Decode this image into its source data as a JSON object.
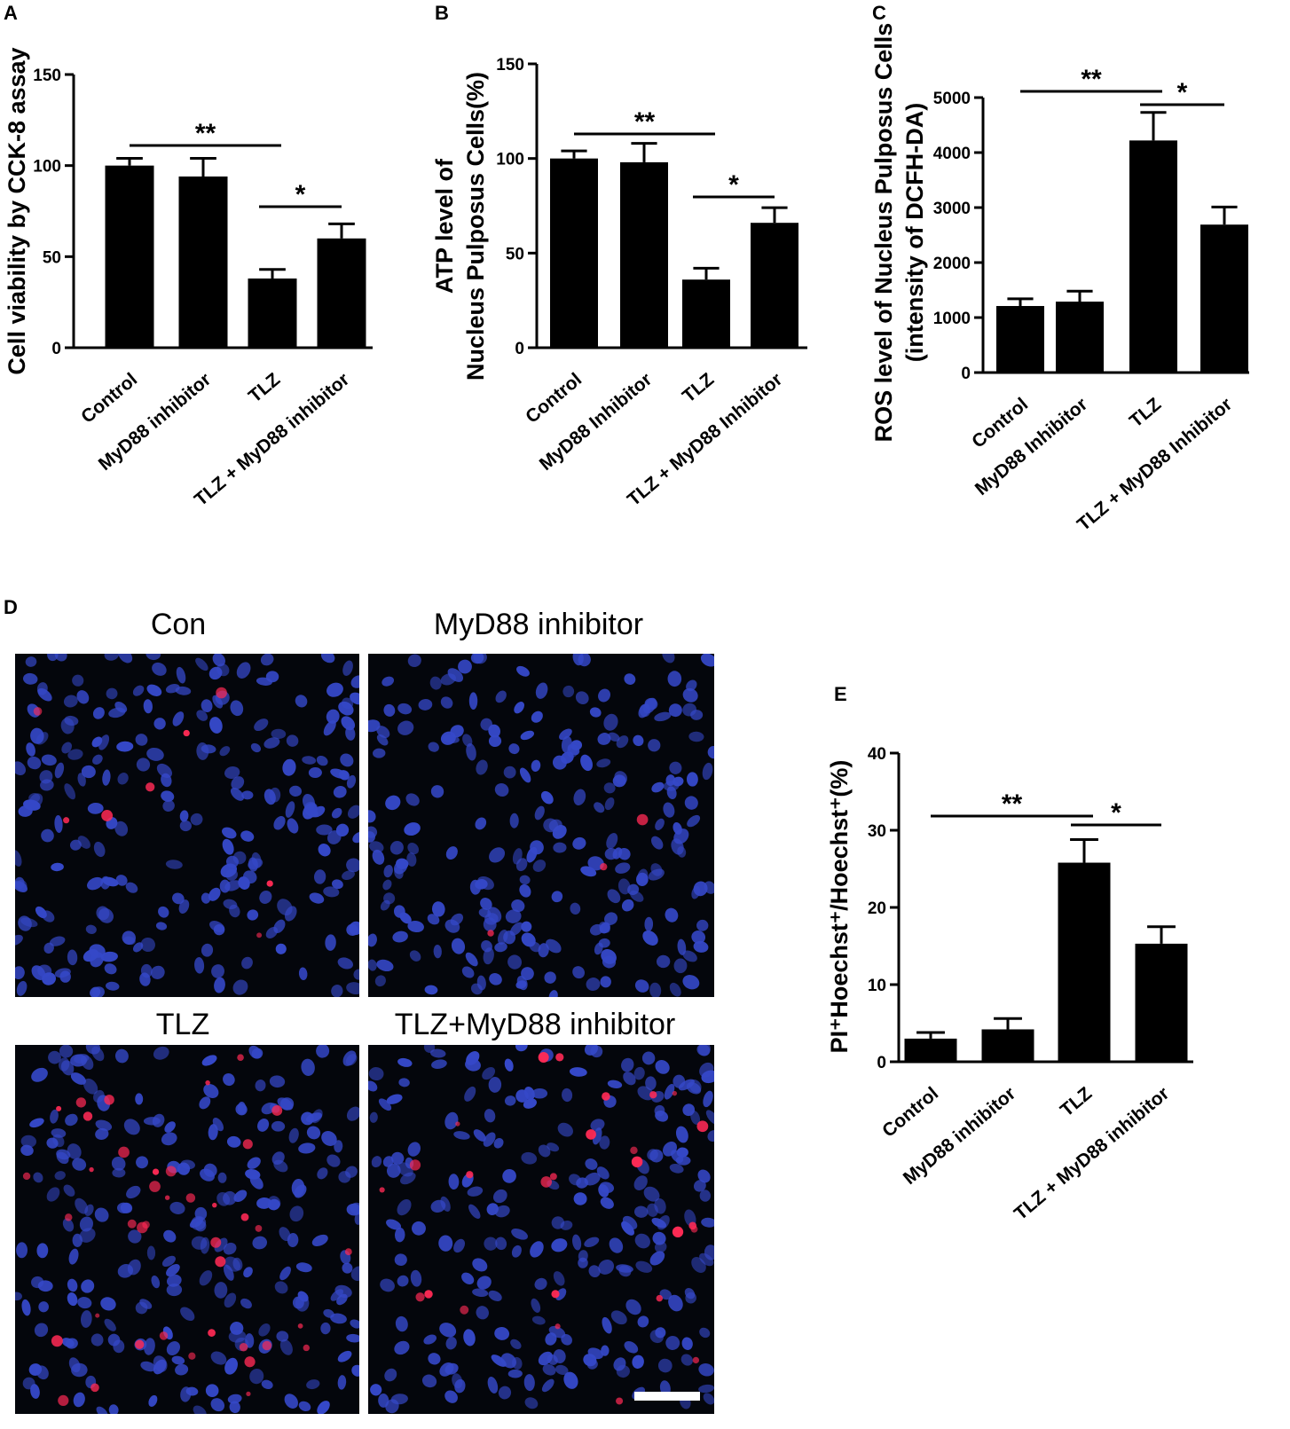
{
  "chart_data": [
    {
      "panel": "A",
      "type": "bar",
      "ylabel": "Cell viability by CCK-8 assay",
      "ylim": [
        0,
        150
      ],
      "yticks": [
        0,
        50,
        100,
        150
      ],
      "categories": [
        "Control",
        "MyD88 inhibitor",
        "TLZ",
        "TLZ + MyD88 inhibitor"
      ],
      "values": [
        100,
        94,
        38,
        60
      ],
      "errors": [
        4,
        10,
        5,
        8
      ],
      "significance": [
        {
          "label": "**",
          "from": 0,
          "to": 2
        },
        {
          "label": "*",
          "from": 2,
          "to": 3
        }
      ]
    },
    {
      "panel": "B",
      "type": "bar",
      "ylabel_lines": [
        "ATP level of",
        "Nucleus Pulposus Cells(%)"
      ],
      "ylim": [
        0,
        150
      ],
      "yticks": [
        0,
        50,
        100,
        150
      ],
      "categories": [
        "Control",
        "MyD88 Inhibitor",
        "TLZ",
        "TLZ + MyD88 Inhibitor"
      ],
      "values": [
        100,
        98,
        36,
        66
      ],
      "errors": [
        4,
        10,
        6,
        8
      ],
      "significance": [
        {
          "label": "**",
          "from": 0,
          "to": 2
        },
        {
          "label": "*",
          "from": 2,
          "to": 3
        }
      ]
    },
    {
      "panel": "C",
      "type": "bar",
      "ylabel_lines": [
        "ROS level of Nucleus Pulposus Cells",
        "(intensity of DCFH-DA)"
      ],
      "ylim": [
        0,
        5000
      ],
      "yticks": [
        0,
        1000,
        2000,
        3000,
        4000,
        5000
      ],
      "categories": [
        "Control",
        "MyD88 Inhibitor",
        "TLZ",
        "TLZ + MyD88 Inhibitor"
      ],
      "values": [
        1210,
        1290,
        4220,
        2690
      ],
      "errors": [
        130,
        190,
        510,
        320
      ],
      "significance": [
        {
          "label": "**",
          "from": 0,
          "to": 2
        },
        {
          "label": "*",
          "from": 2,
          "to": 3
        }
      ]
    },
    {
      "panel": "E",
      "type": "bar",
      "ylabel": "PI⁺Hoechst⁺/Hoechst⁺(%)",
      "ylim": [
        0,
        40
      ],
      "yticks": [
        0,
        10,
        20,
        30,
        40
      ],
      "categories": [
        "Control",
        "MyD88 inhibitor",
        "TLZ",
        "TLZ + MyD88 inhibitor"
      ],
      "values": [
        3.0,
        4.2,
        25.8,
        15.3
      ],
      "errors": [
        0.8,
        1.4,
        3.0,
        2.2
      ],
      "significance": [
        {
          "label": "**",
          "from": 0,
          "to": 2
        },
        {
          "label": "*",
          "from": 2,
          "to": 3
        }
      ]
    }
  ],
  "panel_d": {
    "letter": "D",
    "images": [
      {
        "title": "Con"
      },
      {
        "title": "MyD88 inhibitor"
      },
      {
        "title": "TLZ"
      },
      {
        "title": "TLZ+MyD88 inhibitor"
      }
    ]
  },
  "colors": {
    "bar": "#000000",
    "micrograph_background": "#04060c",
    "nucleus_blue": "#3548c8",
    "pi_red": "#ff2a55",
    "scale_bar": "#ffffff"
  }
}
